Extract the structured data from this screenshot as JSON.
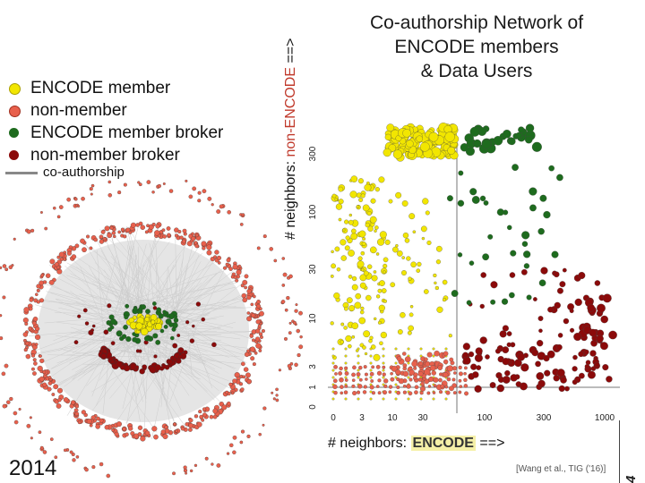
{
  "title_lines": [
    "Co-authorship Network of",
    "ENCODE members",
    "& Data Users"
  ],
  "legend": {
    "items": [
      {
        "label": "ENCODE member",
        "color": "#f2e600"
      },
      {
        "label": "non-member",
        "color": "#e8604c"
      },
      {
        "label": "ENCODE member broker",
        "color": "#1e6b1e"
      },
      {
        "label": "non-member broker",
        "color": "#8b0a0a"
      }
    ],
    "edge_label": "co-authorship"
  },
  "scatter": {
    "y_label_prefix": "# neighbors:",
    "y_label_highlight": "non-ENCODE",
    "y_label_suffix": "==>",
    "x_label_prefix": "# neighbors:",
    "x_label_highlight": "ENCODE",
    "x_label_suffix": "==>",
    "x_ticks": [
      "0",
      "3",
      "10",
      "30",
      "100",
      "300",
      "1000"
    ],
    "y_ticks": [
      "0",
      "1",
      "3",
      "10",
      "30",
      "100",
      "300"
    ]
  },
  "footer": {
    "year": "2014",
    "citation": "[Wang et al., TIG ('16)]",
    "page_number": "4"
  }
}
